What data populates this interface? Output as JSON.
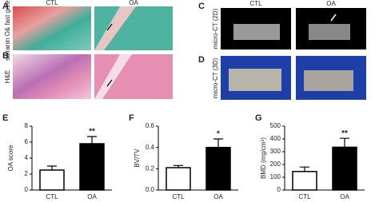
{
  "image_panels": [
    {
      "label": "A",
      "row_label": "safranin O& fast green"
    },
    {
      "label": "B",
      "row_label": "H&E"
    },
    {
      "label": "C",
      "row_label": "micro-CT (2D)"
    },
    {
      "label": "D",
      "row_label": "micro-CT (3D)"
    }
  ],
  "left_columns": [
    "CTL",
    "OA"
  ],
  "right_columns": [
    "CTL",
    "OA"
  ],
  "chart_data": [
    {
      "type": "bar",
      "panel_label": "E",
      "y_label": "OA score",
      "categories": [
        "CTL",
        "OA"
      ],
      "values": [
        2.5,
        5.8
      ],
      "errors": [
        0.5,
        0.9
      ],
      "colors": [
        "#ffffff",
        "#000000"
      ],
      "significance": "**",
      "ylim": [
        0,
        8
      ],
      "yticks": [
        0,
        2,
        4,
        6,
        8
      ]
    },
    {
      "type": "bar",
      "panel_label": "F",
      "y_label": "BV/TV",
      "categories": [
        "CTL",
        "OA"
      ],
      "values": [
        0.21,
        0.4
      ],
      "errors": [
        0.02,
        0.08
      ],
      "colors": [
        "#ffffff",
        "#000000"
      ],
      "significance": "*",
      "ylim": [
        0,
        0.6
      ],
      "yticks": [
        {
          "value": 0,
          "label": "0.0"
        },
        0.2,
        0.4,
        0.6
      ]
    },
    {
      "type": "bar",
      "panel_label": "G",
      "y_label": "BMD (mg/cm³)",
      "categories": [
        "CTL",
        "OA"
      ],
      "values": [
        145,
        335
      ],
      "errors": [
        35,
        70
      ],
      "colors": [
        "#ffffff",
        "#000000"
      ],
      "significance": "**",
      "ylim": [
        0,
        500
      ],
      "yticks": [
        0,
        100,
        200,
        300,
        400,
        500
      ]
    }
  ]
}
